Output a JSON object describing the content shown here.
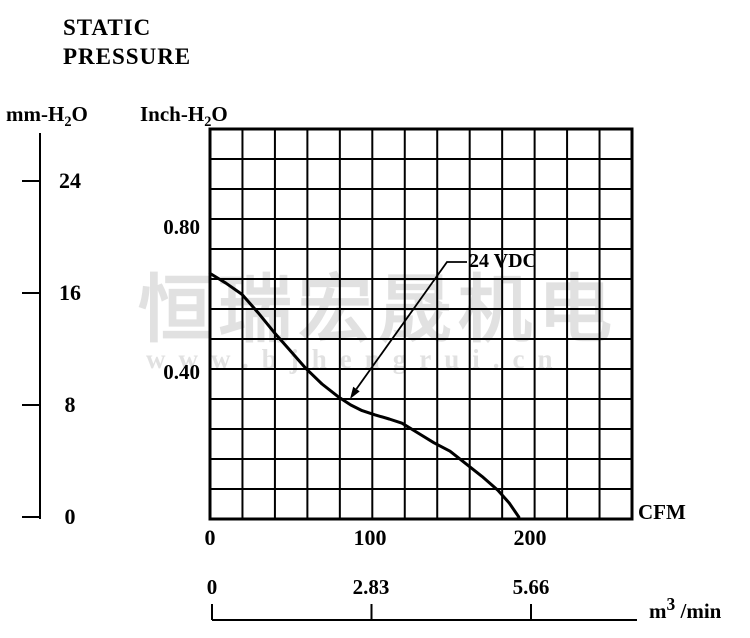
{
  "title": {
    "line1": "STATIC",
    "line2": "PRESSURE"
  },
  "units": {
    "mm": {
      "pre": "mm-H",
      "sub": "2",
      "post": "O"
    },
    "inch": {
      "pre": "Inch-H",
      "sub": "2",
      "post": "O"
    },
    "cfm": "CFM",
    "m3": {
      "pre": "m",
      "sup": "3",
      "post": " /min"
    }
  },
  "watermark": {
    "cjk": "恒瑞宏晟机电",
    "url": "www.bjhengrui.cn"
  },
  "colors": {
    "ink": "#000000",
    "watermark_cjk": "#dcdcdc",
    "watermark_url": "#e0e0e0"
  },
  "chart_data": {
    "type": "line",
    "title": "STATIC PRESSURE",
    "grid": {
      "cols": 13,
      "rows": 13,
      "grid_on": true
    },
    "x_axes": [
      {
        "label": "CFM",
        "ticks": [
          "0",
          "100",
          "200"
        ],
        "tick_values": [
          0,
          100,
          200
        ],
        "range": [
          0,
          260
        ]
      },
      {
        "label": "m3/min",
        "ticks": [
          "0",
          "2.83",
          "5.66"
        ],
        "tick_values": [
          0,
          2.83,
          5.66
        ],
        "range": [
          0,
          7.54
        ]
      }
    ],
    "y_axes": [
      {
        "label": "mm-H2O",
        "ticks": [
          "24",
          "16",
          "8",
          "0"
        ],
        "tick_values": [
          24,
          16,
          8,
          0
        ],
        "range": [
          0,
          27.7
        ]
      },
      {
        "label": "Inch-H2O",
        "ticks": [
          "0.80",
          "0.40"
        ],
        "tick_values": [
          0.8,
          0.4
        ],
        "range": [
          0,
          1.09
        ]
      }
    ],
    "series": [
      {
        "name": "24 VDC",
        "x_unit": "CFM",
        "y_unit": "mm-H2O",
        "points": [
          [
            0,
            17.4
          ],
          [
            10,
            16.7
          ],
          [
            20,
            15.9
          ],
          [
            30,
            14.6
          ],
          [
            40,
            13.2
          ],
          [
            50,
            11.9
          ],
          [
            60,
            10.6
          ],
          [
            70,
            9.5
          ],
          [
            80,
            8.6
          ],
          [
            88,
            8.0
          ],
          [
            95,
            7.6
          ],
          [
            103,
            7.3
          ],
          [
            112,
            7.0
          ],
          [
            120,
            6.7
          ],
          [
            130,
            6.0
          ],
          [
            140,
            5.3
          ],
          [
            150,
            4.7
          ],
          [
            160,
            3.8
          ],
          [
            170,
            2.9
          ],
          [
            180,
            1.9
          ],
          [
            187,
            1.0
          ],
          [
            193,
            0
          ]
        ],
        "max_airflow_cfm": 193,
        "max_static_pressure_mm": 17.4
      }
    ],
    "annotations": [
      {
        "text": "24 VDC",
        "points_to": [
          88,
          8.0
        ]
      }
    ]
  }
}
